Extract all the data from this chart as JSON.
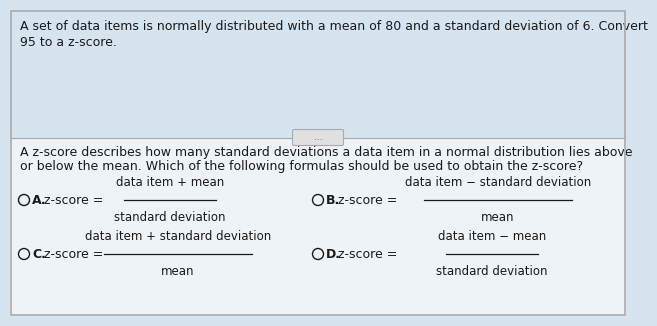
{
  "top_text_line1": "A set of data items is normally distributed with a mean of 80 and a standard deviation of 6. Convert",
  "top_text_line2": "95 to a z-score.",
  "middle_dots": "...",
  "question_line1": "A z-score describes how many standard deviations a data item in a normal distribution lies above",
  "question_line2": "or below the mean. Which of the following formulas should be used to obtain the z-score?",
  "options": [
    {
      "label": "A.",
      "numerator": "data item + mean",
      "denominator": "standard deviation",
      "prefix": "z-score ="
    },
    {
      "label": "B.",
      "numerator": "data item − standard deviation",
      "denominator": "mean",
      "prefix": "z-score ="
    },
    {
      "label": "C.",
      "numerator": "data item + standard deviation",
      "denominator": "mean",
      "prefix": "z-score ="
    },
    {
      "label": "D.",
      "numerator": "data item − mean",
      "denominator": "standard deviation",
      "prefix": "z-score ="
    }
  ],
  "bg_color_top": "#d6e4f0",
  "bg_color_bottom": "#eef3f8",
  "border_color": "#aaaaaa",
  "text_color": "#1a1a1a",
  "font_size": 9.0,
  "font_size_small": 8.5
}
